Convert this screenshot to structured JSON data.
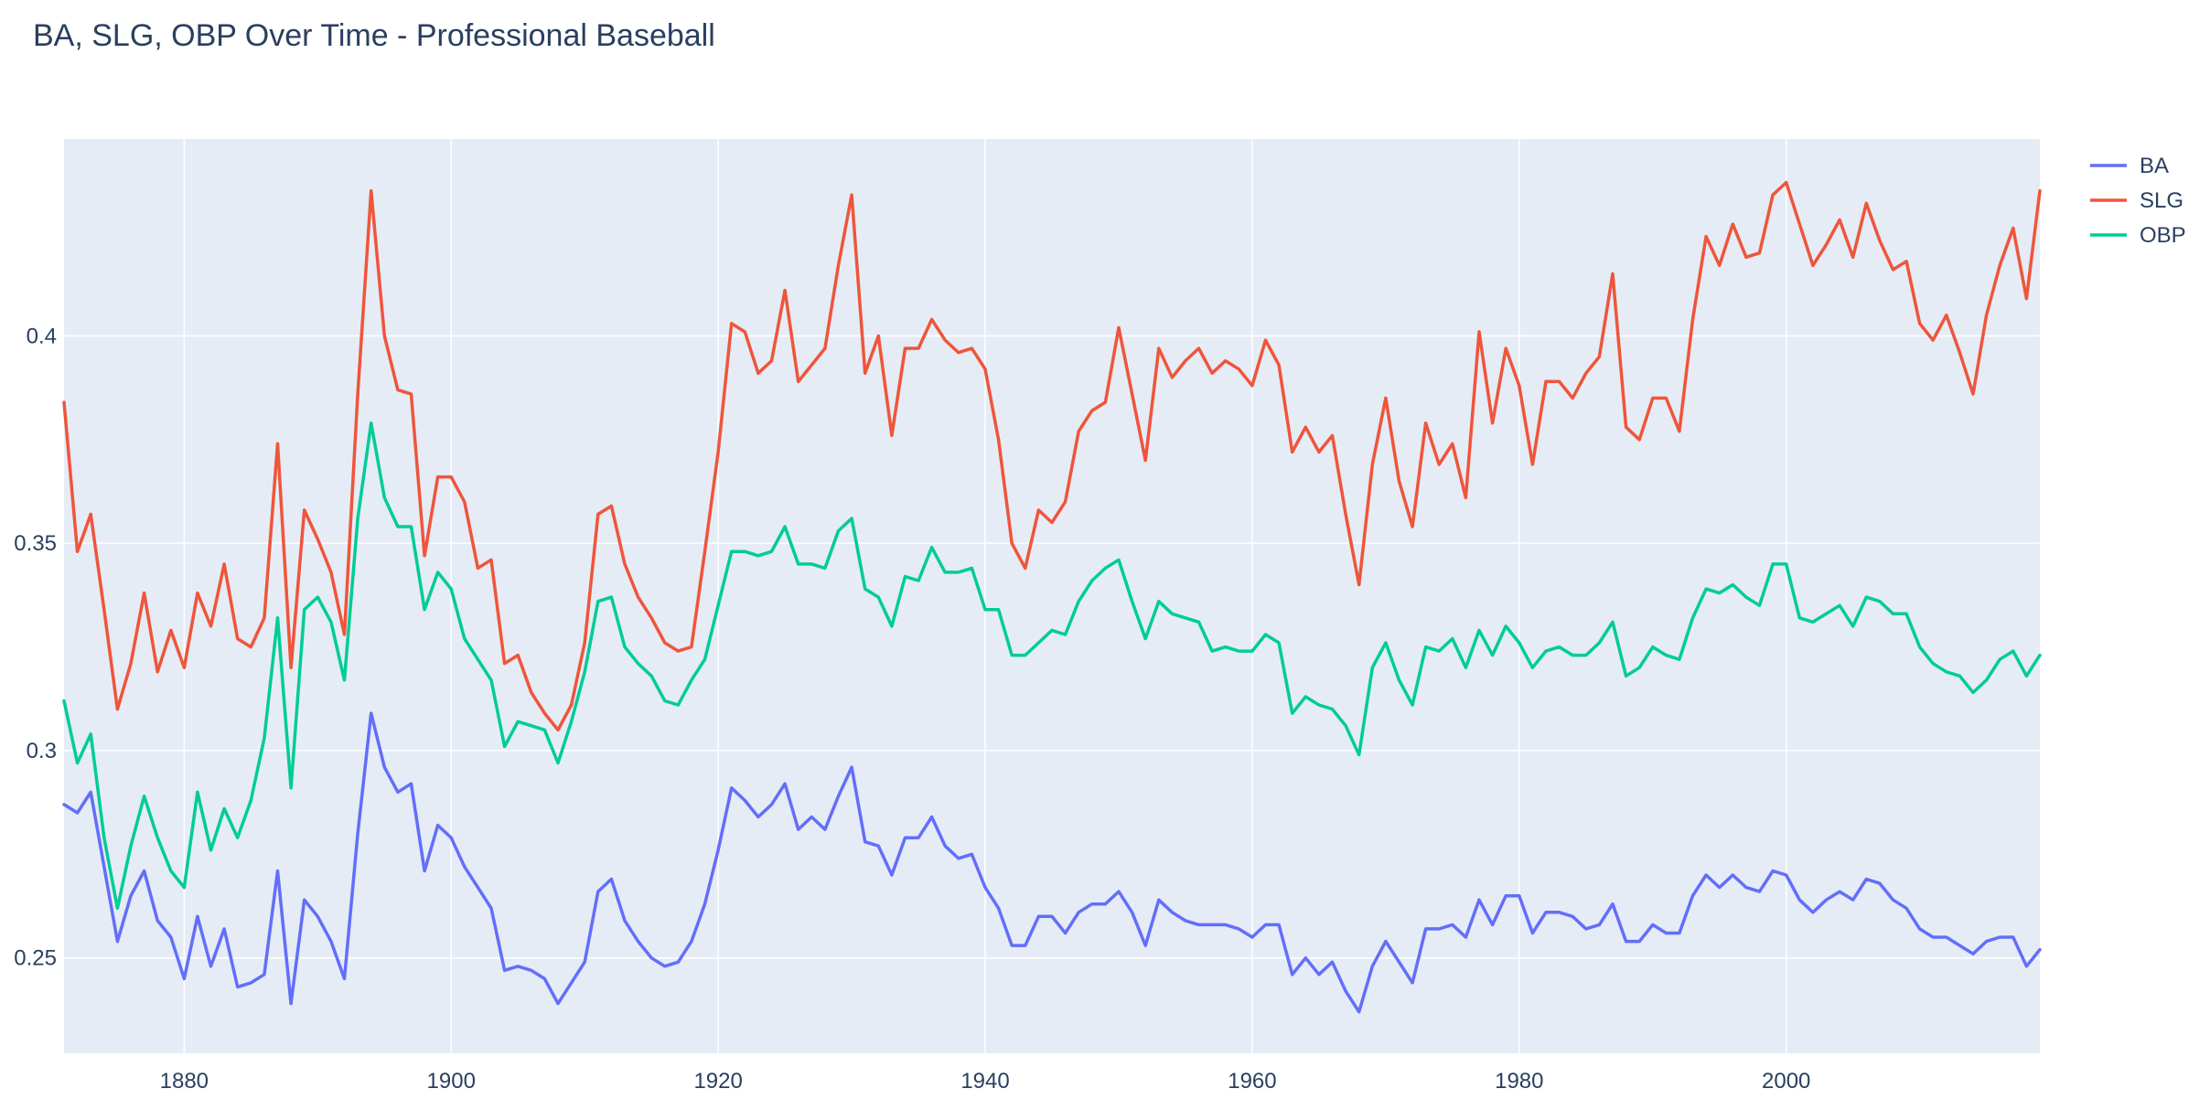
{
  "chart_data": {
    "type": "line",
    "title": "BA, SLG, OBP Over Time - Professional Baseball",
    "xlabel": "",
    "ylabel": "",
    "xlim": [
      1871,
      2019
    ],
    "ylim": [
      0.227,
      0.4475
    ],
    "x_ticks": [
      1880,
      1900,
      1920,
      1940,
      1960,
      1980,
      2000
    ],
    "y_ticks": [
      0.25,
      0.3,
      0.35,
      0.4
    ],
    "x_tick_labels": [
      "1880",
      "1900",
      "1920",
      "1940",
      "1960",
      "1980",
      "2000"
    ],
    "y_tick_labels": [
      "0.25",
      "0.3",
      "0.35",
      "0.4"
    ],
    "grid": true,
    "legend_position": "top-right",
    "x": [
      1871,
      1872,
      1873,
      1874,
      1875,
      1876,
      1877,
      1878,
      1879,
      1880,
      1881,
      1882,
      1883,
      1884,
      1885,
      1886,
      1887,
      1888,
      1889,
      1890,
      1891,
      1892,
      1893,
      1894,
      1895,
      1896,
      1897,
      1898,
      1899,
      1900,
      1901,
      1902,
      1903,
      1904,
      1905,
      1906,
      1907,
      1908,
      1909,
      1910,
      1911,
      1912,
      1913,
      1914,
      1915,
      1916,
      1917,
      1918,
      1919,
      1920,
      1921,
      1922,
      1923,
      1924,
      1925,
      1926,
      1927,
      1928,
      1929,
      1930,
      1931,
      1932,
      1933,
      1934,
      1935,
      1936,
      1937,
      1938,
      1939,
      1940,
      1941,
      1942,
      1943,
      1944,
      1945,
      1946,
      1947,
      1948,
      1949,
      1950,
      1951,
      1952,
      1953,
      1954,
      1955,
      1956,
      1957,
      1958,
      1959,
      1960,
      1961,
      1962,
      1963,
      1964,
      1965,
      1966,
      1967,
      1968,
      1969,
      1970,
      1971,
      1972,
      1973,
      1974,
      1975,
      1976,
      1977,
      1978,
      1979,
      1980,
      1981,
      1982,
      1983,
      1984,
      1985,
      1986,
      1987,
      1988,
      1989,
      1990,
      1991,
      1992,
      1993,
      1994,
      1995,
      1996,
      1997,
      1998,
      1999,
      2000,
      2001,
      2002,
      2003,
      2004,
      2005,
      2006,
      2007,
      2008,
      2009,
      2010,
      2011,
      2012,
      2013,
      2014,
      2015,
      2016,
      2017,
      2018,
      2019
    ],
    "series": [
      {
        "name": "BA",
        "color": "#636efa",
        "values": [
          0.287,
          0.285,
          0.29,
          0.272,
          0.254,
          0.265,
          0.271,
          0.259,
          0.255,
          0.245,
          0.26,
          0.248,
          0.257,
          0.243,
          0.244,
          0.246,
          0.271,
          0.239,
          0.264,
          0.26,
          0.254,
          0.245,
          0.28,
          0.309,
          0.296,
          0.29,
          0.292,
          0.271,
          0.282,
          0.279,
          0.272,
          0.267,
          0.262,
          0.247,
          0.248,
          0.247,
          0.245,
          0.239,
          0.244,
          0.249,
          0.266,
          0.269,
          0.259,
          0.254,
          0.25,
          0.248,
          0.249,
          0.254,
          0.263,
          0.276,
          0.291,
          0.288,
          0.284,
          0.287,
          0.292,
          0.281,
          0.284,
          0.281,
          0.289,
          0.296,
          0.278,
          0.277,
          0.27,
          0.279,
          0.279,
          0.284,
          0.277,
          0.274,
          0.275,
          0.267,
          0.262,
          0.253,
          0.253,
          0.26,
          0.26,
          0.256,
          0.261,
          0.263,
          0.263,
          0.266,
          0.261,
          0.253,
          0.264,
          0.261,
          0.259,
          0.258,
          0.258,
          0.258,
          0.257,
          0.255,
          0.258,
          0.258,
          0.246,
          0.25,
          0.246,
          0.249,
          0.242,
          0.237,
          0.248,
          0.254,
          0.249,
          0.244,
          0.257,
          0.257,
          0.258,
          0.255,
          0.264,
          0.258,
          0.265,
          0.265,
          0.256,
          0.261,
          0.261,
          0.26,
          0.257,
          0.258,
          0.263,
          0.254,
          0.254,
          0.258,
          0.256,
          0.256,
          0.265,
          0.27,
          0.267,
          0.27,
          0.267,
          0.266,
          0.271,
          0.27,
          0.264,
          0.261,
          0.264,
          0.266,
          0.264,
          0.269,
          0.268,
          0.264,
          0.262,
          0.257,
          0.255,
          0.255,
          0.253,
          0.251,
          0.254,
          0.255,
          0.255,
          0.248,
          0.252
        ]
      },
      {
        "name": "SLG",
        "color": "#ef553b",
        "values": [
          0.384,
          0.348,
          0.357,
          0.334,
          0.31,
          0.321,
          0.338,
          0.319,
          0.329,
          0.32,
          0.338,
          0.33,
          0.345,
          0.327,
          0.325,
          0.332,
          0.374,
          0.32,
          0.358,
          0.351,
          0.343,
          0.328,
          0.386,
          0.435,
          0.4,
          0.387,
          0.386,
          0.347,
          0.366,
          0.366,
          0.36,
          0.344,
          0.346,
          0.321,
          0.323,
          0.314,
          0.309,
          0.305,
          0.311,
          0.326,
          0.357,
          0.359,
          0.345,
          0.337,
          0.332,
          0.326,
          0.324,
          0.325,
          0.348,
          0.372,
          0.403,
          0.401,
          0.391,
          0.394,
          0.411,
          0.389,
          0.393,
          0.397,
          0.417,
          0.434,
          0.391,
          0.4,
          0.376,
          0.397,
          0.397,
          0.404,
          0.399,
          0.396,
          0.397,
          0.392,
          0.375,
          0.35,
          0.344,
          0.358,
          0.355,
          0.36,
          0.377,
          0.382,
          0.384,
          0.402,
          0.386,
          0.37,
          0.397,
          0.39,
          0.394,
          0.397,
          0.391,
          0.394,
          0.392,
          0.388,
          0.399,
          0.393,
          0.372,
          0.378,
          0.372,
          0.376,
          0.357,
          0.34,
          0.369,
          0.385,
          0.365,
          0.354,
          0.379,
          0.369,
          0.374,
          0.361,
          0.401,
          0.379,
          0.397,
          0.388,
          0.369,
          0.389,
          0.389,
          0.385,
          0.391,
          0.395,
          0.415,
          0.378,
          0.375,
          0.385,
          0.385,
          0.377,
          0.404,
          0.424,
          0.417,
          0.427,
          0.419,
          0.42,
          0.434,
          0.437,
          0.427,
          0.417,
          0.422,
          0.428,
          0.419,
          0.432,
          0.423,
          0.416,
          0.418,
          0.403,
          0.399,
          0.405,
          0.396,
          0.386,
          0.405,
          0.417,
          0.426,
          0.409,
          0.435
        ]
      },
      {
        "name": "OBP",
        "color": "#00cc96",
        "values": [
          0.312,
          0.297,
          0.304,
          0.279,
          0.262,
          0.277,
          0.289,
          0.279,
          0.271,
          0.267,
          0.29,
          0.276,
          0.286,
          0.279,
          0.288,
          0.303,
          0.332,
          0.291,
          0.334,
          0.337,
          0.331,
          0.317,
          0.356,
          0.379,
          0.361,
          0.354,
          0.354,
          0.334,
          0.343,
          0.339,
          0.327,
          0.322,
          0.317,
          0.301,
          0.307,
          0.306,
          0.305,
          0.297,
          0.307,
          0.319,
          0.336,
          0.337,
          0.325,
          0.321,
          0.318,
          0.312,
          0.311,
          0.317,
          0.322,
          0.335,
          0.348,
          0.348,
          0.347,
          0.348,
          0.354,
          0.345,
          0.345,
          0.344,
          0.353,
          0.356,
          0.339,
          0.337,
          0.33,
          0.342,
          0.341,
          0.349,
          0.343,
          0.343,
          0.344,
          0.334,
          0.334,
          0.323,
          0.323,
          0.326,
          0.329,
          0.328,
          0.336,
          0.341,
          0.344,
          0.346,
          0.336,
          0.327,
          0.336,
          0.333,
          0.332,
          0.331,
          0.324,
          0.325,
          0.324,
          0.324,
          0.328,
          0.326,
          0.309,
          0.313,
          0.311,
          0.31,
          0.306,
          0.299,
          0.32,
          0.326,
          0.317,
          0.311,
          0.325,
          0.324,
          0.327,
          0.32,
          0.329,
          0.323,
          0.33,
          0.326,
          0.32,
          0.324,
          0.325,
          0.323,
          0.323,
          0.326,
          0.331,
          0.318,
          0.32,
          0.325,
          0.323,
          0.322,
          0.332,
          0.339,
          0.338,
          0.34,
          0.337,
          0.335,
          0.345,
          0.345,
          0.332,
          0.331,
          0.333,
          0.335,
          0.33,
          0.337,
          0.336,
          0.333,
          0.333,
          0.325,
          0.321,
          0.319,
          0.318,
          0.314,
          0.317,
          0.322,
          0.324,
          0.318,
          0.323
        ]
      }
    ]
  }
}
